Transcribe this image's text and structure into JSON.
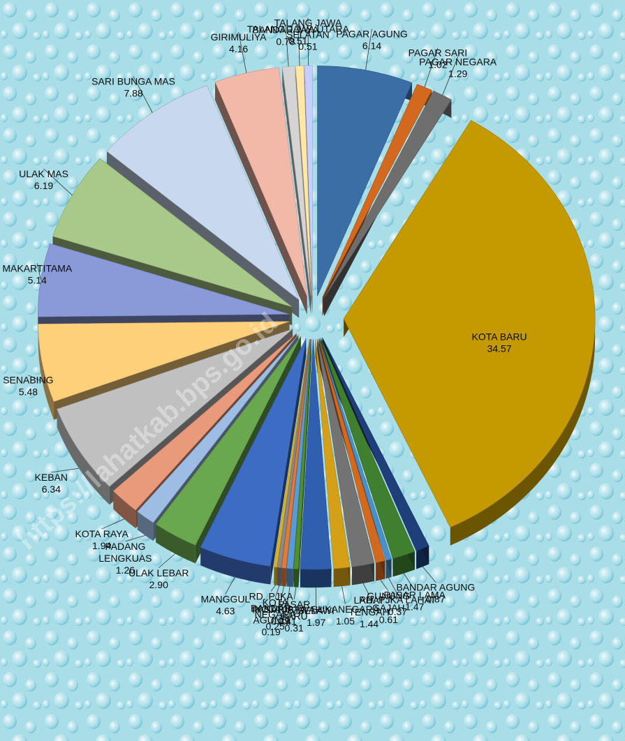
{
  "watermark": "https://lahatkab.bps.go.id",
  "chart_data": {
    "type": "pie",
    "style": "3d exploded pie",
    "legend": "none",
    "data_labels": "category name and value",
    "slices": [
      {
        "label": "PAGAR AGUNG",
        "value": 6.14,
        "color": "#3a6ea5"
      },
      {
        "label": "PAGAR SARI",
        "value": 1.02,
        "color": "#d2691e"
      },
      {
        "label": "PAGAR NEGARA",
        "value": 1.29,
        "color": "#6e6e6e"
      },
      {
        "label": "KOTA BARU",
        "value": 34.57,
        "color": "#c49a00"
      },
      {
        "label": "BANDAR AGUNG",
        "value": 0.87,
        "color": "#1f3f7a"
      },
      {
        "label": "PASAR LAMA",
        "value": 1.47,
        "color": "#3f7f2f"
      },
      {
        "label": "RD. PJKA LAHAT",
        "value": 0.37,
        "color": "#4a90c8"
      },
      {
        "label": "GUNUNG GAJAH",
        "value": 0.61,
        "color": "#d2691e"
      },
      {
        "label": "LAHAT TENGAH",
        "value": 1.44,
        "color": "#737373"
      },
      {
        "label": "SUKANEGARA",
        "value": 1.05,
        "color": "#d4a017"
      },
      {
        "label": "SELAWI",
        "value": 1.97,
        "color": "#2f5fae"
      },
      {
        "label": "PASAR BARU",
        "value": 0.31,
        "color": "#4f8f2f"
      },
      {
        "label": "PASAR BAWAH",
        "value": 0.41,
        "color": "#5b9bd5"
      },
      {
        "label": "KOTA JAYA",
        "value": 0.29,
        "color": "#e07b39"
      },
      {
        "label": "KOTA NEGARA",
        "value": 0.25,
        "color": "#8a8a8a"
      },
      {
        "label": "RD. PJKA BANDAR AGUNG",
        "value": 0.19,
        "color": "#e0b020"
      },
      {
        "label": "MANGGUL",
        "value": 4.63,
        "color": "#3d6cc4"
      },
      {
        "label": "ULAK LEBAR",
        "value": 2.9,
        "color": "#6aa84f"
      },
      {
        "label": "PADANG LENGKUAS",
        "value": 1.26,
        "color": "#9dbde4"
      },
      {
        "label": "KOTA RAYA",
        "value": 1.94,
        "color": "#e89a7a"
      },
      {
        "label": "KEBAN",
        "value": 6.34,
        "color": "#c0c0c0"
      },
      {
        "label": "SENABING",
        "value": 5.48,
        "color": "#ffd07a"
      },
      {
        "label": "MAKARTITAMA",
        "value": 5.14,
        "color": "#8a9ad8"
      },
      {
        "label": "ULAK MAS",
        "value": 6.19,
        "color": "#a9c98a"
      },
      {
        "label": "SARI BUNGA MAS",
        "value": 7.88,
        "color": "#c8d8ee"
      },
      {
        "label": "GIRIMULIYA",
        "value": 4.16,
        "color": "#f2b8a8"
      },
      {
        "label": "BANDAR JAYA",
        "value": 0.78,
        "color": "#d4d4d4"
      },
      {
        "label": "TALANG JAWA UTARA",
        "value": 0.51,
        "color": "#ffe7a8"
      },
      {
        "label": "TALANG JAWA SELATAN",
        "value": 0.51,
        "color": "#c6cfff"
      }
    ],
    "value_labels": [
      "6.14",
      "1.02",
      "1.29",
      "34.57",
      "0.87",
      "1.47",
      "0.37",
      "0.61",
      "1.44",
      "1.05",
      "1.97",
      "0.31",
      "0.41",
      "0.29",
      "0.25",
      "0.19",
      "4.63",
      "2.90",
      "1.26",
      "1.94",
      "6.34",
      "5.48",
      "5.14",
      "6.19",
      "7.88",
      "4.16",
      "0.78",
      "0.51",
      "0.51"
    ],
    "name_labels": [
      [
        "PAGAR AGUNG"
      ],
      [
        "PAGAR SARI"
      ],
      [
        "PAGAR NEGARA"
      ],
      [
        "KOTA BARU"
      ],
      [
        "BANDAR AGUNG"
      ],
      [
        "PASAR LAMA"
      ],
      [
        "RD. PJKA LAHAT"
      ],
      [
        "GUNUNG",
        "GAJAH"
      ],
      [
        "LAHAT",
        "TENGAH"
      ],
      [
        "SUKANEGARA"
      ],
      [
        "SELAWI"
      ],
      [
        "PASAR",
        "BARU"
      ],
      [
        "PASAR BAWAH"
      ],
      [
        "KOTA JAYA"
      ],
      [
        "KOTA",
        "NEGARA"
      ],
      [
        "RD. PJKA",
        "BANDAR",
        "AGUNG"
      ],
      [
        "MANGGUL"
      ],
      [
        "ULAK LEBAR"
      ],
      [
        "PADANG",
        "LENGKUAS"
      ],
      [
        "KOTA RAYA"
      ],
      [
        "KEBAN"
      ],
      [
        "SENABING"
      ],
      [
        "MAKARTITAMA"
      ],
      [
        "ULAK MAS"
      ],
      [
        "SARI BUNGA MAS"
      ],
      [
        "GIRIMULIYA"
      ],
      [
        "BANDAR JAYA"
      ],
      [
        "TALANG JAWA UTARA"
      ],
      [
        "TALANG JAWA",
        "SELATAN"
      ]
    ]
  }
}
